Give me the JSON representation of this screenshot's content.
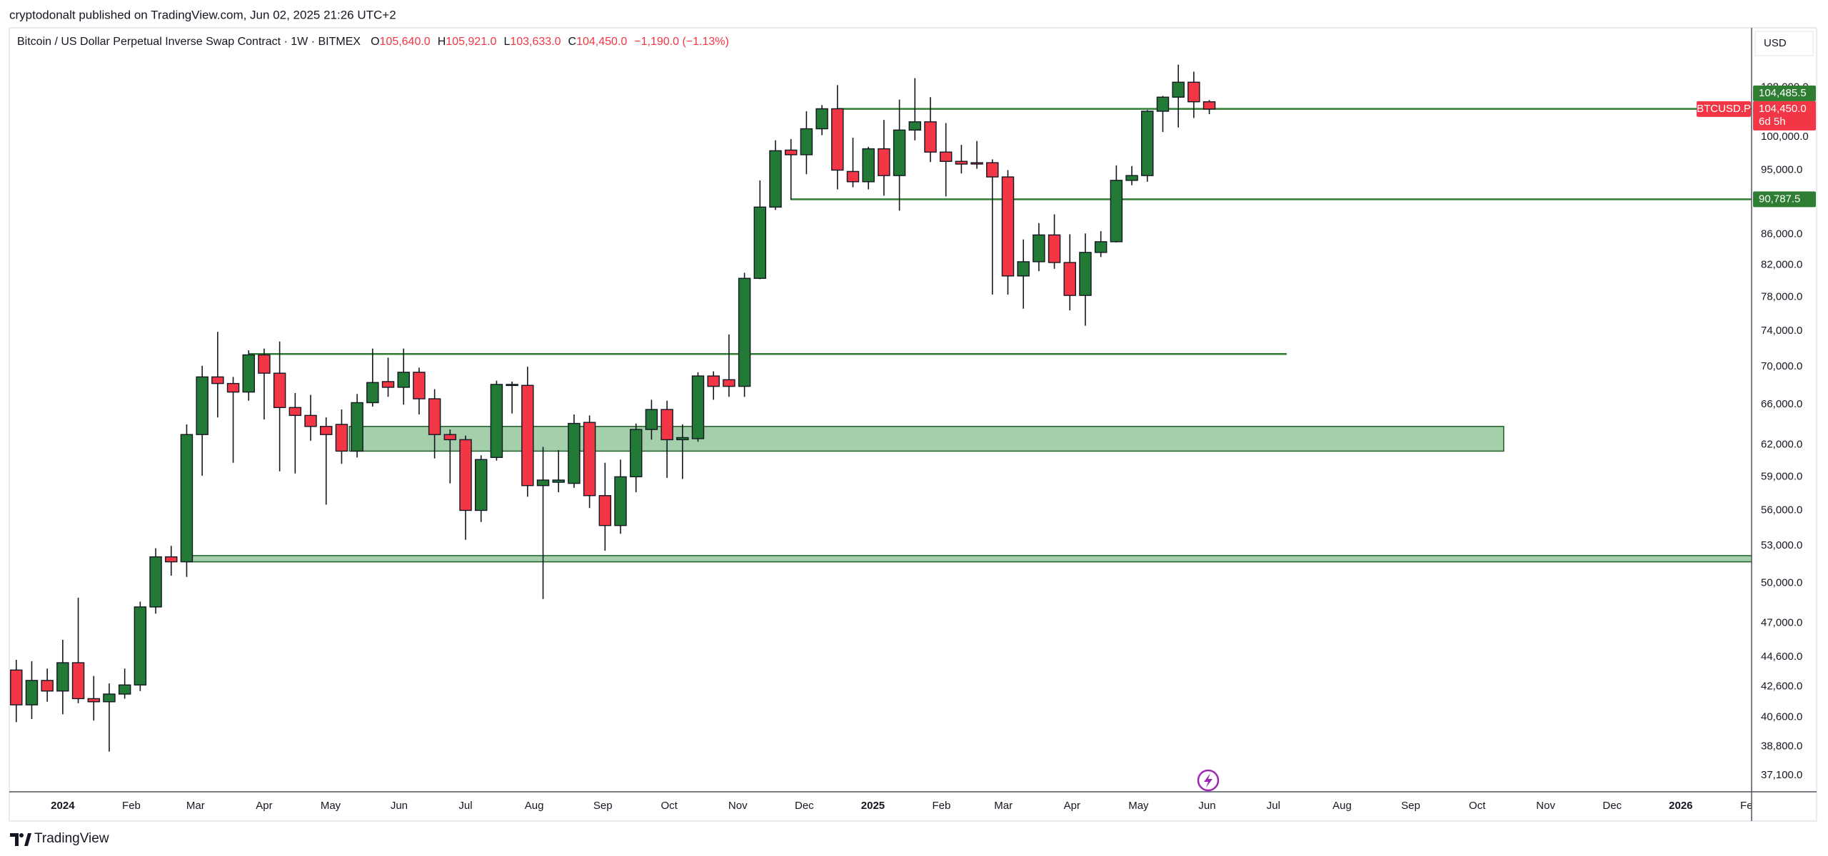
{
  "header": {
    "published": "cryptodonalt published on TradingView.com, Jun 02, 2025 21:26 UTC+2"
  },
  "footer": {
    "brand": "TradingView"
  },
  "chart_data": {
    "type": "candlestick",
    "title": "Bitcoin / US Dollar Perpetual Inverse Swap Contract · 1W · BITMEX",
    "legend_values": [
      {
        "key": "O",
        "text": "105,640.0"
      },
      {
        "key": "H",
        "text": "105,921.0"
      },
      {
        "key": "L",
        "text": "103,633.0"
      },
      {
        "key": "C",
        "text": "104,450.0"
      }
    ],
    "change": "−1,190.0 (−1.13%)",
    "currency": "USD",
    "symbol": "BTCUSD.P",
    "countdown": "6d 5h",
    "last_price_label": "104,450.0",
    "open": [
      43700,
      41400,
      43000,
      42300,
      44200,
      41800,
      41600,
      42100,
      42700,
      48200,
      52100,
      51700,
      63000,
      68900,
      68200,
      67300,
      71300,
      69300,
      65700,
      64900,
      63800,
      64000,
      61400,
      66200,
      68400,
      67800,
      69400,
      66600,
      63000,
      62500,
      56000,
      60800,
      68000,
      68000,
      58200,
      58500,
      58400,
      64200,
      57300,
      54700,
      59000,
      63500,
      65500,
      62500,
      62600,
      69000,
      68600,
      67900,
      80300,
      89700,
      98000,
      97300,
      101300,
      104500,
      94800,
      93300,
      98200,
      94200,
      101100,
      102400,
      97700,
      96300,
      96100,
      96100,
      94000,
      80600,
      82400,
      85900,
      82300,
      78200,
      83600,
      85000,
      93500,
      94200,
      104100,
      106400,
      108900,
      105640
    ],
    "high": [
      44400,
      44300,
      43800,
      45800,
      48900,
      43300,
      42800,
      43800,
      48600,
      52800,
      53000,
      64000,
      70100,
      73900,
      68900,
      71800,
      72000,
      72800,
      67200,
      67000,
      64700,
      65500,
      67100,
      72000,
      71000,
      72000,
      69900,
      67600,
      63500,
      62900,
      61000,
      68500,
      68400,
      70000,
      61800,
      61500,
      65000,
      64900,
      60300,
      60600,
      64100,
      66500,
      66400,
      64000,
      69400,
      69500,
      73600,
      81000,
      93500,
      99500,
      99700,
      104100,
      105100,
      108400,
      99900,
      98500,
      102700,
      106000,
      109600,
      106400,
      102200,
      98800,
      99400,
      96600,
      95000,
      85300,
      87500,
      88700,
      86000,
      86100,
      86400,
      95700,
      95600,
      104300,
      106600,
      111900,
      110700,
      105921
    ],
    "low": [
      40300,
      40500,
      41600,
      40800,
      41500,
      40400,
      38500,
      41800,
      42300,
      47700,
      50600,
      50500,
      59100,
      64700,
      60300,
      66400,
      64500,
      59500,
      59300,
      62400,
      56500,
      60200,
      60800,
      65800,
      66800,
      66000,
      65000,
      60700,
      58400,
      53500,
      55000,
      60500,
      65100,
      57200,
      48800,
      57600,
      58000,
      56200,
      52600,
      54000,
      57600,
      62500,
      58900,
      58800,
      62300,
      66500,
      66800,
      66800,
      80200,
      89300,
      90700,
      94400,
      100300,
      92200,
      92500,
      92200,
      91300,
      89200,
      99500,
      96200,
      91200,
      94500,
      95200,
      78300,
      78300,
      76600,
      81200,
      81500,
      76400,
      74600,
      83000,
      84900,
      92800,
      93300,
      100800,
      101500,
      103000,
      103633
    ],
    "close": [
      41400,
      43000,
      42300,
      44200,
      41800,
      41600,
      42100,
      42700,
      48200,
      52100,
      51700,
      63000,
      68900,
      68200,
      67300,
      71300,
      69300,
      65700,
      64900,
      63800,
      63000,
      61400,
      66200,
      68300,
      67800,
      69400,
      66600,
      63000,
      62500,
      56000,
      60600,
      68100,
      68100,
      58200,
      58700,
      58700,
      64100,
      57300,
      54700,
      59000,
      63500,
      65500,
      62500,
      62700,
      69000,
      67900,
      67900,
      80300,
      89700,
      97900,
      97300,
      101300,
      104500,
      95000,
      93300,
      98200,
      94200,
      101100,
      102400,
      97700,
      96300,
      95900,
      95900,
      94000,
      80600,
      82400,
      85900,
      82300,
      78200,
      83600,
      85000,
      93500,
      94200,
      104100,
      106400,
      108900,
      105640,
      104450
    ],
    "up_color": "#237a36",
    "down_color": "#f23645",
    "wick_color": "#131722",
    "log_scale": true,
    "grid": false,
    "xlim": [
      -0.45,
      112
    ],
    "xticks": [
      {
        "value": 3,
        "label": "2024"
      },
      {
        "value": 7.43,
        "label": "Feb"
      },
      {
        "value": 11.57,
        "label": "Mar"
      },
      {
        "value": 16,
        "label": "Apr"
      },
      {
        "value": 20.29,
        "label": "May"
      },
      {
        "value": 24.71,
        "label": "Jun"
      },
      {
        "value": 29,
        "label": "Jul"
      },
      {
        "value": 33.43,
        "label": "Aug"
      },
      {
        "value": 37.86,
        "label": "Sep"
      },
      {
        "value": 42.14,
        "label": "Oct"
      },
      {
        "value": 46.57,
        "label": "Nov"
      },
      {
        "value": 50.86,
        "label": "Dec"
      },
      {
        "value": 55.29,
        "label": "2025"
      },
      {
        "value": 59.71,
        "label": "Feb"
      },
      {
        "value": 63.71,
        "label": "Mar"
      },
      {
        "value": 68.14,
        "label": "Apr"
      },
      {
        "value": 72.43,
        "label": "May"
      },
      {
        "value": 76.86,
        "label": "Jun"
      },
      {
        "value": 81.14,
        "label": "Jul"
      },
      {
        "value": 85.57,
        "label": "Aug"
      },
      {
        "value": 90,
        "label": "Sep"
      },
      {
        "value": 94.29,
        "label": "Oct"
      },
      {
        "value": 98.71,
        "label": "Nov"
      },
      {
        "value": 103,
        "label": "Dec"
      },
      {
        "value": 107.43,
        "label": "2026"
      },
      {
        "value": 111.86,
        "label": "Feb"
      }
    ],
    "ylim": [
      36170,
      118500
    ],
    "yticks": [
      {
        "value": 37100,
        "label": "37,100.0"
      },
      {
        "value": 38800,
        "label": "38,800.0"
      },
      {
        "value": 40600,
        "label": "40,600.0"
      },
      {
        "value": 42600,
        "label": "42,600.0"
      },
      {
        "value": 44600,
        "label": "44,600.0"
      },
      {
        "value": 47000,
        "label": "47,000.0"
      },
      {
        "value": 50000,
        "label": "50,000.0"
      },
      {
        "value": 53000,
        "label": "53,000.0"
      },
      {
        "value": 56000,
        "label": "56,000.0"
      },
      {
        "value": 59000,
        "label": "59,000.0"
      },
      {
        "value": 62000,
        "label": "62,000.0"
      },
      {
        "value": 66000,
        "label": "66,000.0"
      },
      {
        "value": 70000,
        "label": "70,000.0"
      },
      {
        "value": 74000,
        "label": "74,000.0"
      },
      {
        "value": 78000,
        "label": "78,000.0"
      },
      {
        "value": 82000,
        "label": "82,000.0"
      },
      {
        "value": 86000,
        "label": "86,000.0"
      },
      {
        "value": 95000,
        "label": "95,000.0"
      },
      {
        "value": 100000,
        "label": "100,000.0"
      },
      {
        "value": 108000,
        "label": "108,000.0"
      }
    ],
    "levels": [
      {
        "value": 104485.5,
        "label": "104,485.5",
        "from": 53
      },
      {
        "value": 90787.5,
        "label": "90,787.5",
        "from": 50
      },
      {
        "value": 71400,
        "from": 15,
        "to": 82
      }
    ],
    "zones": [
      {
        "low": 61400,
        "high": 63800,
        "from": 21.5,
        "to": 96
      },
      {
        "low": 51700,
        "high": 52200,
        "from": 11
      }
    ],
    "level_color": "#2e7d32",
    "zone_color": "#a5cfab",
    "zone_border": "#1e5e25"
  }
}
